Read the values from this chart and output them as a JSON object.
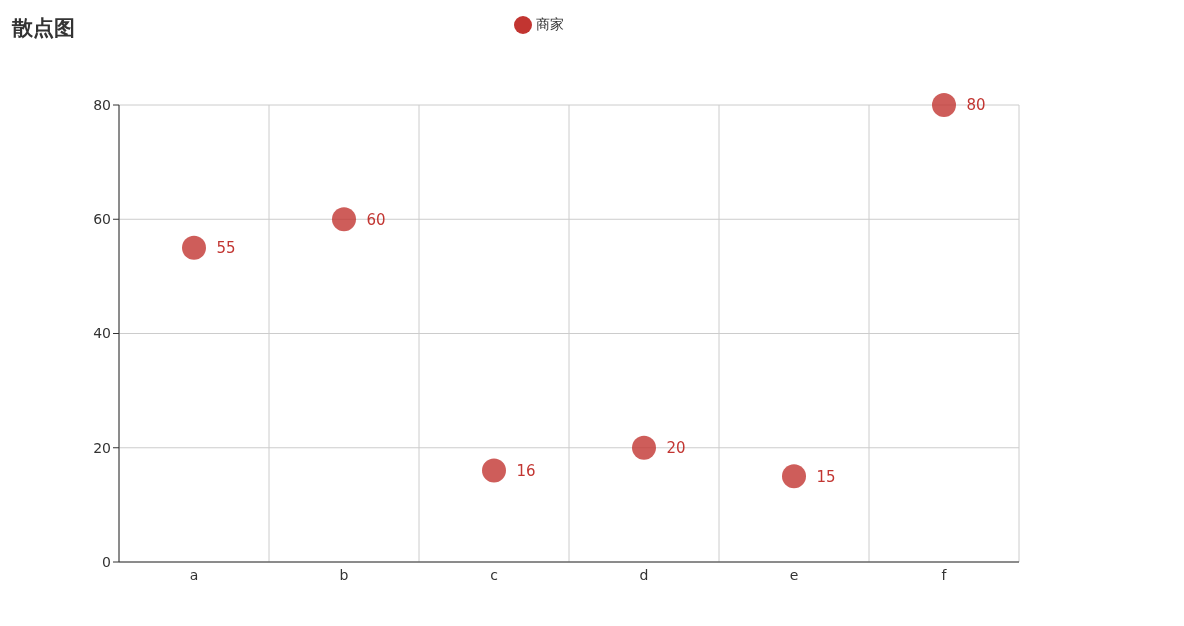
{
  "chart_data": {
    "type": "scatter",
    "title": "散点图",
    "categories": [
      "a",
      "b",
      "c",
      "d",
      "e",
      "f"
    ],
    "series": [
      {
        "name": "商家",
        "color": "#c23531",
        "values": [
          55,
          60,
          16,
          20,
          15,
          80
        ]
      }
    ],
    "ylim": [
      0,
      80
    ],
    "yticks": [
      0,
      20,
      40,
      60,
      80
    ],
    "grid": true,
    "legend": "top",
    "marker": "circle",
    "data_labels": true
  }
}
